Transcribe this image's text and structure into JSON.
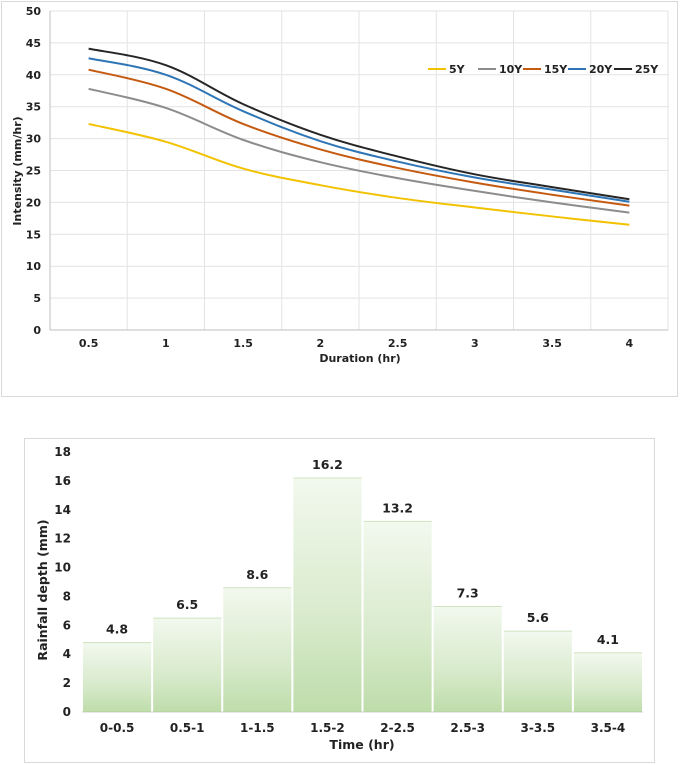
{
  "chart_data": [
    {
      "type": "line",
      "x": [
        0.5,
        1,
        1.5,
        2,
        2.5,
        3,
        3.5,
        4
      ],
      "x_tick_labels": [
        "0.5",
        "1",
        "1.5",
        "2",
        "2.5",
        "3",
        "3.5",
        "4"
      ],
      "series": [
        {
          "name": "5Y",
          "color": "#f2c200",
          "values": [
            32.3,
            29.5,
            25.3,
            22.7,
            20.7,
            19.2,
            17.8,
            16.5
          ]
        },
        {
          "name": "10Y",
          "color": "#8c8c8c",
          "values": [
            37.8,
            34.8,
            29.8,
            26.3,
            23.8,
            21.8,
            20.0,
            18.4
          ]
        },
        {
          "name": "15Y",
          "color": "#c55a11",
          "values": [
            40.8,
            37.8,
            32.3,
            28.3,
            25.4,
            23.1,
            21.2,
            19.5
          ]
        },
        {
          "name": "20Y",
          "color": "#2e75b6",
          "values": [
            42.6,
            40.0,
            34.3,
            29.6,
            26.4,
            23.9,
            22.0,
            20.1
          ]
        },
        {
          "name": "25Y",
          "color": "#262626",
          "values": [
            44.1,
            41.5,
            35.4,
            30.6,
            27.2,
            24.4,
            22.4,
            20.5
          ]
        }
      ],
      "title": "",
      "xlabel": "Duration (hr)",
      "ylabel": "Intensity (mm/hr)",
      "ylim": [
        0,
        50
      ],
      "y_ticks": [
        0,
        5,
        10,
        15,
        20,
        25,
        30,
        35,
        40,
        45,
        50
      ],
      "grid": true,
      "legend_position": "top-right"
    },
    {
      "type": "bar",
      "categories": [
        "0-0.5",
        "0.5-1",
        "1-1.5",
        "1.5-2",
        "2-2.5",
        "2.5-3",
        "3-3.5",
        "3.5-4"
      ],
      "values": [
        4.8,
        6.5,
        8.6,
        16.2,
        13.2,
        7.3,
        5.6,
        4.1
      ],
      "value_labels": [
        "4.8",
        "6.5",
        "8.6",
        "16.2",
        "13.2",
        "7.3",
        "5.6",
        "4.1"
      ],
      "title": "",
      "xlabel": "Time (hr)",
      "ylabel": "Rainfall depth (mm)",
      "ylim": [
        0,
        18
      ],
      "y_ticks": [
        0,
        2,
        4,
        6,
        8,
        10,
        12,
        14,
        16,
        18
      ],
      "bar_color": "#a9d18e",
      "grid": false
    }
  ]
}
